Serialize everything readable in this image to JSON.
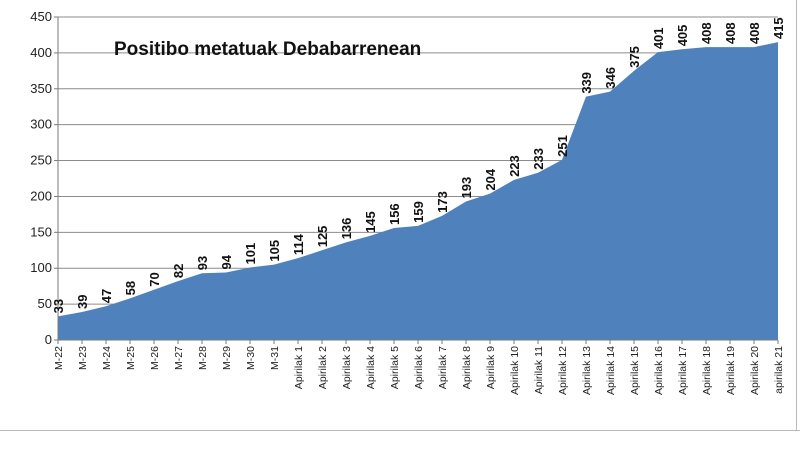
{
  "chart_data": {
    "type": "area",
    "title": "Positibo metatuak Debabarrenean",
    "xlabel": "",
    "ylabel": "",
    "ylim": [
      0,
      450
    ],
    "yticks": [
      0,
      50,
      100,
      150,
      200,
      250,
      300,
      350,
      400,
      450
    ],
    "grid": true,
    "legend": "none",
    "color": "#4f81bd",
    "categories": [
      "M-22",
      "M-23",
      "M-24",
      "M-25",
      "M-26",
      "M-27",
      "M-28",
      "M-29",
      "M-30",
      "M-31",
      "Apirilak 1",
      "Apirilak 2",
      "Apirilak 3",
      "Apirilak 4",
      "Apirilak 5",
      "Apirilak 6",
      "Apirilak 7",
      "Apirilak 8",
      "Apirilak 9",
      "Apirilak 10",
      "Apirilak 11",
      "Apirilak 12",
      "Apirilak 13",
      "Apirilak 14",
      "Apirilak 15",
      "Apirilak 16",
      "Apirilak 17",
      "Apirilak 18",
      "Apirilak 19",
      "Apirilak 20",
      "apirilak 21"
    ],
    "values": [
      33,
      39,
      47,
      58,
      70,
      82,
      93,
      94,
      101,
      105,
      114,
      125,
      136,
      145,
      156,
      159,
      173,
      193,
      204,
      223,
      233,
      251,
      339,
      346,
      375,
      401,
      405,
      408,
      408,
      408,
      415
    ]
  }
}
